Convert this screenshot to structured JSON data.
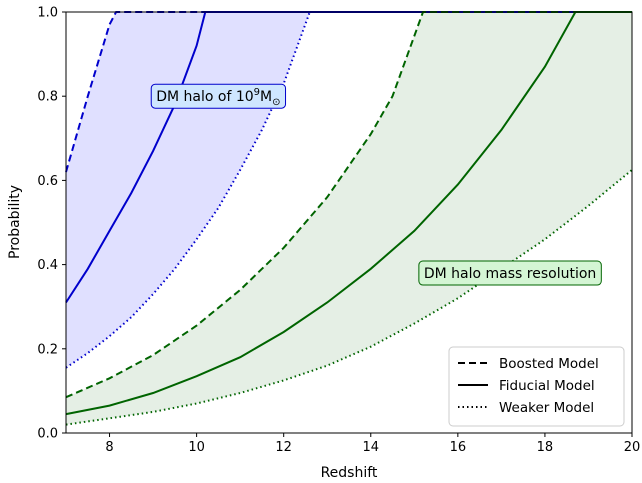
{
  "chart_data": {
    "type": "line",
    "xlabel": "Redshift",
    "ylabel": "Probability",
    "xlim": [
      7,
      20
    ],
    "ylim": [
      0,
      1
    ],
    "xticks": [
      "8",
      "10",
      "12",
      "14",
      "16",
      "18",
      "20"
    ],
    "yticks": [
      "0.0",
      "0.2",
      "0.4",
      "0.6",
      "0.8",
      "1.0"
    ],
    "grid": false,
    "legend_position": "bottom-right",
    "legend": [
      {
        "label": "Boosted Model",
        "style": "dashed"
      },
      {
        "label": "Fiducial Model",
        "style": "solid"
      },
      {
        "label": "Weaker Model",
        "style": "dotted"
      }
    ],
    "annotations": [
      {
        "text": "DM halo of 10",
        "sup": "9",
        "suffix": "M",
        "sub": "⊙",
        "anchor_series": "blue",
        "x": 10.5,
        "y": 0.8
      },
      {
        "text": "DM halo mass resolution",
        "anchor_series": "green",
        "x": 17.2,
        "y": 0.38
      }
    ],
    "groups": [
      {
        "name": "blue",
        "color": "#0000cc",
        "fill": "#0000ff",
        "fill_opacity": 0.12,
        "series": [
          {
            "style": "dashed",
            "x": [
              7.0,
              7.5,
              8.0,
              8.15,
              20.0
            ],
            "y": [
              0.62,
              0.8,
              0.97,
              1.0,
              1.0
            ]
          },
          {
            "style": "solid",
            "x": [
              7.0,
              7.5,
              8.0,
              8.5,
              9.0,
              9.5,
              10.0,
              10.2,
              20.0
            ],
            "y": [
              0.31,
              0.39,
              0.48,
              0.57,
              0.67,
              0.78,
              0.92,
              1.0,
              1.0
            ]
          },
          {
            "style": "dotted",
            "x": [
              7.0,
              7.5,
              8.0,
              8.5,
              9.0,
              9.5,
              10.0,
              10.5,
              11.0,
              11.5,
              12.0,
              12.6,
              20.0
            ],
            "y": [
              0.155,
              0.19,
              0.23,
              0.275,
              0.33,
              0.39,
              0.46,
              0.535,
              0.625,
              0.72,
              0.83,
              1.0,
              1.0
            ]
          }
        ]
      },
      {
        "name": "green",
        "color": "#006400",
        "fill": "#006400",
        "fill_opacity": 0.1,
        "series": [
          {
            "style": "dashed",
            "x": [
              7.0,
              8.0,
              9.0,
              10.0,
              11.0,
              12.0,
              13.0,
              14.0,
              14.5,
              15.2,
              20.0
            ],
            "y": [
              0.085,
              0.13,
              0.185,
              0.255,
              0.34,
              0.44,
              0.56,
              0.71,
              0.8,
              1.0,
              1.0
            ]
          },
          {
            "style": "solid",
            "x": [
              7.0,
              8.0,
              9.0,
              10.0,
              11.0,
              12.0,
              13.0,
              14.0,
              15.0,
              16.0,
              17.0,
              18.0,
              18.7,
              20.0
            ],
            "y": [
              0.045,
              0.065,
              0.095,
              0.135,
              0.18,
              0.24,
              0.31,
              0.39,
              0.48,
              0.59,
              0.72,
              0.87,
              1.0,
              1.0
            ]
          },
          {
            "style": "dotted",
            "x": [
              7.0,
              8.0,
              9.0,
              10.0,
              11.0,
              12.0,
              13.0,
              14.0,
              15.0,
              16.0,
              17.0,
              18.0,
              19.0,
              20.0
            ],
            "y": [
              0.02,
              0.035,
              0.05,
              0.07,
              0.095,
              0.125,
              0.16,
              0.205,
              0.26,
              0.32,
              0.39,
              0.46,
              0.54,
              0.625
            ]
          }
        ]
      }
    ]
  }
}
